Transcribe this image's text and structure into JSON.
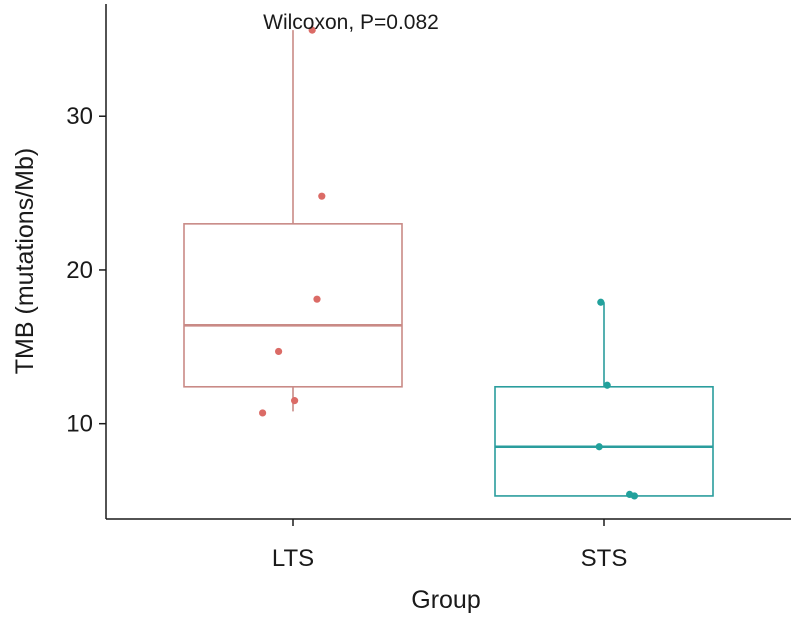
{
  "chart_data": {
    "type": "box",
    "title": "",
    "xlabel": "Group",
    "ylabel": "TMB (mutations/Mb)",
    "annotation": "Wilcoxon, P=0.082",
    "categories": [
      "LTS",
      "STS"
    ],
    "ylim": [
      3.8,
      37.3
    ],
    "yticks": [
      10,
      20,
      30
    ],
    "ytick_labels": [
      "10",
      "20",
      "30"
    ],
    "grid": false,
    "legend": "none",
    "boxes": [
      {
        "group": "LTS",
        "color": "#c98a86",
        "point_color": "#db6b66",
        "whisker_low": 10.8,
        "q1": 12.4,
        "median": 16.4,
        "q3": 23.0,
        "whisker_high": 35.6,
        "points": [
          {
            "x_jitter": 0.12,
            "y": 35.6
          },
          {
            "x_jitter": 0.18,
            "y": 24.8
          },
          {
            "x_jitter": 0.15,
            "y": 18.1
          },
          {
            "x_jitter": -0.09,
            "y": 14.7
          },
          {
            "x_jitter": 0.01,
            "y": 11.5
          },
          {
            "x_jitter": -0.19,
            "y": 10.7
          }
        ]
      },
      {
        "group": "STS",
        "color": "#2a9d9d",
        "point_color": "#22a19c",
        "whisker_low": 5.3,
        "q1": 5.3,
        "median": 8.5,
        "q3": 12.4,
        "whisker_high": 17.9,
        "points": [
          {
            "x_jitter": -0.02,
            "y": 17.9
          },
          {
            "x_jitter": 0.02,
            "y": 12.5
          },
          {
            "x_jitter": -0.03,
            "y": 8.5
          },
          {
            "x_jitter": 0.16,
            "y": 5.4
          },
          {
            "x_jitter": 0.19,
            "y": 5.3
          }
        ]
      }
    ]
  }
}
